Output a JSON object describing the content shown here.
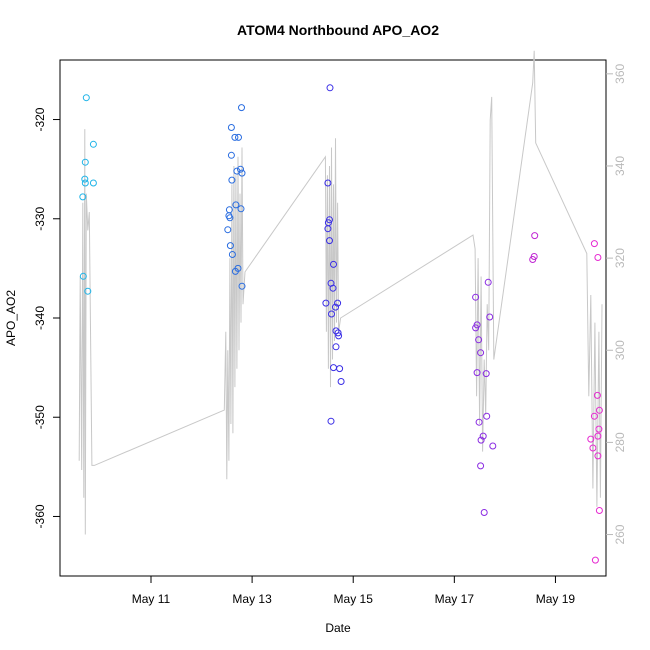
{
  "chart_data": {
    "type": "scatter",
    "title": "ATOM4 Northbound APO_AO2",
    "xlabel": "Date",
    "ylabel": "APO_AO2",
    "xlim_days": [
      9.2,
      20.0
    ],
    "ylim": [
      -366,
      -314
    ],
    "y2lim": [
      251,
      363
    ],
    "x_ticks": [
      {
        "value": 11,
        "label": "May 11"
      },
      {
        "value": 13,
        "label": "May 13"
      },
      {
        "value": 15,
        "label": "May 15"
      },
      {
        "value": 17,
        "label": "May 17"
      },
      {
        "value": 19,
        "label": "May 19"
      }
    ],
    "y_ticks": [
      {
        "value": -320,
        "label": "-320"
      },
      {
        "value": -330,
        "label": "-330"
      },
      {
        "value": -340,
        "label": "-340"
      },
      {
        "value": -350,
        "label": "-350"
      },
      {
        "value": -360,
        "label": "-360"
      }
    ],
    "y2_ticks": [
      {
        "value": 260,
        "label": "260"
      },
      {
        "value": 280,
        "label": "280"
      },
      {
        "value": 300,
        "label": "300"
      },
      {
        "value": 320,
        "label": "320"
      },
      {
        "value": 340,
        "label": "340"
      },
      {
        "value": 360,
        "label": "360"
      }
    ],
    "points": [
      {
        "x": 9.72,
        "y": -317.8,
        "color": "#1fb4e8"
      },
      {
        "x": 9.7,
        "y": -324.3,
        "color": "#1fb4e8"
      },
      {
        "x": 9.69,
        "y": -326.0,
        "color": "#1fb4e8"
      },
      {
        "x": 9.7,
        "y": -326.4,
        "color": "#1fb4e8"
      },
      {
        "x": 9.86,
        "y": -322.5,
        "color": "#1fb4e8"
      },
      {
        "x": 9.86,
        "y": -326.4,
        "color": "#1fb4e8"
      },
      {
        "x": 9.65,
        "y": -327.8,
        "color": "#1fb4e8"
      },
      {
        "x": 9.66,
        "y": -335.8,
        "color": "#1fb4e8"
      },
      {
        "x": 9.75,
        "y": -337.3,
        "color": "#1fb4e8"
      },
      {
        "x": 12.79,
        "y": -318.8,
        "color": "#2a6de0"
      },
      {
        "x": 12.59,
        "y": -320.8,
        "color": "#2a6de0"
      },
      {
        "x": 12.66,
        "y": -321.8,
        "color": "#2a6de0"
      },
      {
        "x": 12.73,
        "y": -321.8,
        "color": "#2a6de0"
      },
      {
        "x": 12.59,
        "y": -323.6,
        "color": "#2a6de0"
      },
      {
        "x": 12.7,
        "y": -325.2,
        "color": "#2a6de0"
      },
      {
        "x": 12.77,
        "y": -325.0,
        "color": "#2a6de0"
      },
      {
        "x": 12.8,
        "y": -325.4,
        "color": "#2a6de0"
      },
      {
        "x": 12.6,
        "y": -326.1,
        "color": "#2a6de0"
      },
      {
        "x": 12.68,
        "y": -328.6,
        "color": "#2a6de0"
      },
      {
        "x": 12.78,
        "y": -329.0,
        "color": "#2a6de0"
      },
      {
        "x": 12.55,
        "y": -329.1,
        "color": "#2a6de0"
      },
      {
        "x": 12.54,
        "y": -329.7,
        "color": "#2a6de0"
      },
      {
        "x": 12.56,
        "y": -329.9,
        "color": "#2a6de0"
      },
      {
        "x": 12.52,
        "y": -331.1,
        "color": "#2a6de0"
      },
      {
        "x": 12.57,
        "y": -332.7,
        "color": "#2a6de0"
      },
      {
        "x": 12.61,
        "y": -333.6,
        "color": "#2a6de0"
      },
      {
        "x": 12.72,
        "y": -335.0,
        "color": "#2a6de0"
      },
      {
        "x": 12.67,
        "y": -335.3,
        "color": "#2a6de0"
      },
      {
        "x": 12.8,
        "y": -336.8,
        "color": "#2a6de0"
      },
      {
        "x": 14.54,
        "y": -316.8,
        "color": "#3a2ee6"
      },
      {
        "x": 14.5,
        "y": -326.4,
        "color": "#3a2ee6"
      },
      {
        "x": 14.53,
        "y": -330.1,
        "color": "#3a2ee6"
      },
      {
        "x": 14.51,
        "y": -330.4,
        "color": "#3a2ee6"
      },
      {
        "x": 14.5,
        "y": -331.0,
        "color": "#3a2ee6"
      },
      {
        "x": 14.53,
        "y": -332.2,
        "color": "#3a2ee6"
      },
      {
        "x": 14.61,
        "y": -334.6,
        "color": "#3a2ee6"
      },
      {
        "x": 14.56,
        "y": -336.5,
        "color": "#3a2ee6"
      },
      {
        "x": 14.6,
        "y": -337.0,
        "color": "#3a2ee6"
      },
      {
        "x": 14.46,
        "y": -338.5,
        "color": "#3a2ee6"
      },
      {
        "x": 14.69,
        "y": -338.5,
        "color": "#3a2ee6"
      },
      {
        "x": 14.65,
        "y": -338.9,
        "color": "#3a2ee6"
      },
      {
        "x": 14.57,
        "y": -339.6,
        "color": "#3a2ee6"
      },
      {
        "x": 14.66,
        "y": -341.3,
        "color": "#3a2ee6"
      },
      {
        "x": 14.7,
        "y": -341.5,
        "color": "#3a2ee6"
      },
      {
        "x": 14.71,
        "y": -341.8,
        "color": "#3a2ee6"
      },
      {
        "x": 14.66,
        "y": -342.9,
        "color": "#3a2ee6"
      },
      {
        "x": 14.61,
        "y": -345.0,
        "color": "#3a2ee6"
      },
      {
        "x": 14.73,
        "y": -345.1,
        "color": "#3a2ee6"
      },
      {
        "x": 14.76,
        "y": -346.4,
        "color": "#3a2ee6"
      },
      {
        "x": 14.56,
        "y": -350.4,
        "color": "#3a2ee6"
      },
      {
        "x": 17.42,
        "y": -337.9,
        "color": "#8a2be2"
      },
      {
        "x": 17.45,
        "y": -340.7,
        "color": "#8a2be2"
      },
      {
        "x": 17.42,
        "y": -341.0,
        "color": "#8a2be2"
      },
      {
        "x": 17.67,
        "y": -336.4,
        "color": "#8a2be2"
      },
      {
        "x": 17.7,
        "y": -339.9,
        "color": "#8a2be2"
      },
      {
        "x": 17.48,
        "y": -342.2,
        "color": "#8a2be2"
      },
      {
        "x": 17.52,
        "y": -343.5,
        "color": "#8a2be2"
      },
      {
        "x": 17.45,
        "y": -345.5,
        "color": "#8a2be2"
      },
      {
        "x": 17.63,
        "y": -345.6,
        "color": "#8a2be2"
      },
      {
        "x": 17.64,
        "y": -349.9,
        "color": "#8a2be2"
      },
      {
        "x": 17.49,
        "y": -350.5,
        "color": "#8a2be2"
      },
      {
        "x": 17.57,
        "y": -351.9,
        "color": "#8a2be2"
      },
      {
        "x": 17.53,
        "y": -352.3,
        "color": "#8a2be2"
      },
      {
        "x": 17.76,
        "y": -352.9,
        "color": "#8a2be2"
      },
      {
        "x": 17.52,
        "y": -354.9,
        "color": "#8a2be2"
      },
      {
        "x": 17.59,
        "y": -359.6,
        "color": "#8a2be2"
      },
      {
        "x": 18.59,
        "y": -331.7,
        "color": "#c026d3"
      },
      {
        "x": 18.58,
        "y": -333.8,
        "color": "#c026d3"
      },
      {
        "x": 18.55,
        "y": -334.1,
        "color": "#c026d3"
      },
      {
        "x": 19.77,
        "y": -332.5,
        "color": "#e62ad1"
      },
      {
        "x": 19.84,
        "y": -333.9,
        "color": "#e62ad1"
      },
      {
        "x": 19.83,
        "y": -347.8,
        "color": "#e62ad1"
      },
      {
        "x": 19.87,
        "y": -349.3,
        "color": "#e62ad1"
      },
      {
        "x": 19.77,
        "y": -349.9,
        "color": "#e62ad1"
      },
      {
        "x": 19.86,
        "y": -351.2,
        "color": "#e62ad1"
      },
      {
        "x": 19.84,
        "y": -351.9,
        "color": "#e62ad1"
      },
      {
        "x": 19.7,
        "y": -352.2,
        "color": "#e62ad1"
      },
      {
        "x": 19.74,
        "y": -353.1,
        "color": "#e62ad1"
      },
      {
        "x": 19.84,
        "y": -353.9,
        "color": "#e62ad1"
      },
      {
        "x": 19.87,
        "y": -359.4,
        "color": "#e62ad1"
      },
      {
        "x": 19.79,
        "y": -364.4,
        "color": "#e62ad1"
      }
    ],
    "secondary_line": {
      "color": "#c8c8c8",
      "axis": "y2",
      "points": [
        [
          9.58,
          276
        ],
        [
          9.6,
          316
        ],
        [
          9.63,
          274
        ],
        [
          9.65,
          332
        ],
        [
          9.67,
          268
        ],
        [
          9.69,
          348
        ],
        [
          9.7,
          260
        ],
        [
          9.72,
          334
        ],
        [
          9.75,
          326
        ],
        [
          9.78,
          330
        ],
        [
          9.83,
          275
        ],
        [
          9.88,
          275
        ],
        [
          12.45,
          287
        ],
        [
          12.48,
          304
        ],
        [
          12.5,
          272
        ],
        [
          12.52,
          300
        ],
        [
          12.54,
          276
        ],
        [
          12.56,
          320
        ],
        [
          12.58,
          284
        ],
        [
          12.6,
          336
        ],
        [
          12.62,
          282
        ],
        [
          12.64,
          340
        ],
        [
          12.66,
          292
        ],
        [
          12.68,
          338
        ],
        [
          12.7,
          296
        ],
        [
          12.72,
          342
        ],
        [
          12.74,
          300
        ],
        [
          12.76,
          334
        ],
        [
          12.78,
          306
        ],
        [
          12.8,
          344
        ],
        [
          12.82,
          310
        ],
        [
          12.86,
          317
        ],
        [
          14.45,
          342
        ],
        [
          14.47,
          304
        ],
        [
          14.49,
          338
        ],
        [
          14.51,
          296
        ],
        [
          14.53,
          340
        ],
        [
          14.55,
          292
        ],
        [
          14.57,
          344
        ],
        [
          14.59,
          298
        ],
        [
          14.61,
          336
        ],
        [
          14.63,
          302
        ],
        [
          14.65,
          346
        ],
        [
          14.67,
          306
        ],
        [
          14.69,
          332
        ],
        [
          14.71,
          304
        ],
        [
          14.75,
          307
        ],
        [
          17.37,
          325
        ],
        [
          17.41,
          322
        ],
        [
          17.44,
          290
        ],
        [
          17.47,
          320
        ],
        [
          17.5,
          284
        ],
        [
          17.53,
          316
        ],
        [
          17.56,
          278
        ],
        [
          17.59,
          298
        ],
        [
          17.62,
          286
        ],
        [
          17.65,
          310
        ],
        [
          17.68,
          300
        ],
        [
          17.71,
          350
        ],
        [
          17.74,
          355
        ],
        [
          17.78,
          298
        ],
        [
          18.55,
          358
        ],
        [
          18.58,
          365
        ],
        [
          18.61,
          345
        ],
        [
          19.62,
          321
        ],
        [
          19.66,
          290
        ],
        [
          19.7,
          312
        ],
        [
          19.74,
          270
        ],
        [
          19.78,
          306
        ],
        [
          19.82,
          266
        ],
        [
          19.86,
          304
        ],
        [
          19.89,
          268
        ],
        [
          19.92,
          310
        ]
      ]
    }
  }
}
